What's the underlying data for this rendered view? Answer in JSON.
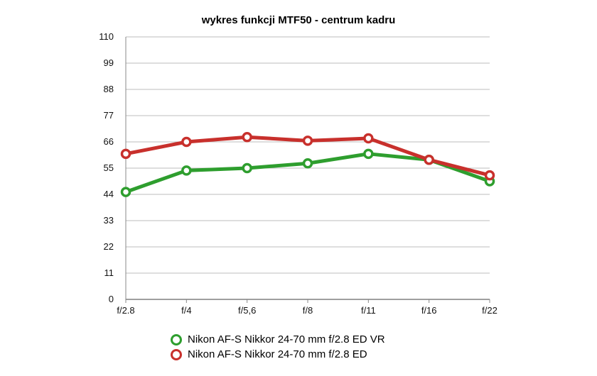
{
  "chart_data": {
    "type": "line",
    "title": "wykres funkcji MTF50 - centrum kadru",
    "xlabel": "",
    "ylabel": "",
    "categories": [
      "f/2.8",
      "f/4",
      "f/5,6",
      "f/8",
      "f/11",
      "f/16",
      "f/22"
    ],
    "yticks": [
      "0",
      "11",
      "22",
      "33",
      "44",
      "55",
      "66",
      "77",
      "88",
      "99",
      "110"
    ],
    "ylim": [
      0,
      110
    ],
    "grid": true,
    "legend_position": "bottom",
    "series": [
      {
        "name": "Nikon AF-S Nikkor 24-70 mm f/2.8 ED VR",
        "color": "#2e9e2e",
        "values": [
          45,
          54,
          55,
          57,
          61,
          58.5,
          49.5
        ]
      },
      {
        "name": "Nikon AF-S Nikkor 24-70 mm f/2.8 ED",
        "color": "#c8302c",
        "values": [
          61,
          66,
          68,
          66.5,
          67.5,
          58.5,
          52
        ]
      }
    ]
  }
}
